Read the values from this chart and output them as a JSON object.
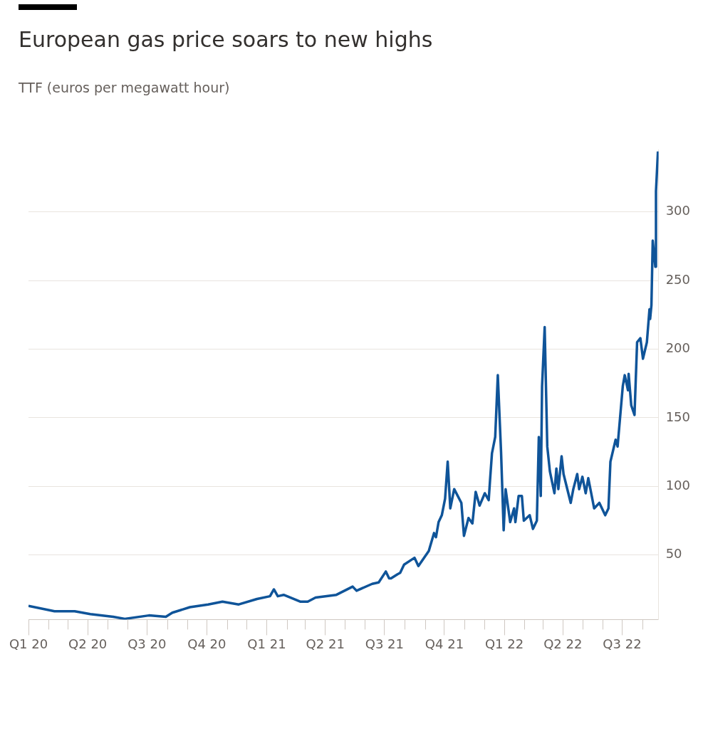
{
  "chart_data": {
    "type": "line",
    "title": "European gas price soars to new highs",
    "subtitle": "TTF (euros per megawatt hour)",
    "x": [
      "2020-01-01",
      "2020-02-10",
      "2020-03-12",
      "2020-04-05",
      "2020-05-10",
      "2020-05-28",
      "2020-07-04",
      "2020-07-30",
      "2020-08-09",
      "2020-09-05",
      "2020-10-03",
      "2020-10-25",
      "2020-11-19",
      "2020-12-17",
      "2021-01-06",
      "2021-01-12",
      "2021-01-18",
      "2021-01-27",
      "2021-02-22",
      "2021-03-05",
      "2021-03-17",
      "2021-04-18",
      "2021-05-13",
      "2021-05-19",
      "2021-06-12",
      "2021-06-22",
      "2021-07-03",
      "2021-07-08",
      "2021-07-11",
      "2021-07-21",
      "2021-07-25",
      "2021-07-31",
      "2021-08-16",
      "2021-08-22",
      "2021-09-07",
      "2021-09-15",
      "2021-09-18",
      "2021-09-22",
      "2021-09-27",
      "2021-10-02",
      "2021-10-06",
      "2021-10-10",
      "2021-10-16",
      "2021-10-27",
      "2021-10-31",
      "2021-11-07",
      "2021-11-13",
      "2021-11-18",
      "2021-11-24",
      "2021-12-02",
      "2021-12-08",
      "2021-12-10",
      "2021-12-13",
      "2021-12-18",
      "2021-12-22",
      "2021-12-27",
      "2021-12-31",
      "2022-01-03",
      "2022-01-10",
      "2022-01-16",
      "2022-01-18",
      "2022-01-23",
      "2022-01-28",
      "2022-01-31",
      "2022-02-09",
      "2022-02-14",
      "2022-02-20",
      "2022-02-23",
      "2022-02-26",
      "2022-02-28",
      "2022-03-04",
      "2022-03-08",
      "2022-03-12",
      "2022-03-19",
      "2022-03-22",
      "2022-03-25",
      "2022-03-30",
      "2022-04-02",
      "2022-04-13",
      "2022-04-17",
      "2022-04-23",
      "2022-04-26",
      "2022-05-01",
      "2022-05-06",
      "2022-05-10",
      "2022-05-19",
      "2022-05-27",
      "2022-06-05",
      "2022-06-10",
      "2022-06-13",
      "2022-06-21",
      "2022-06-24",
      "2022-07-02",
      "2022-07-05",
      "2022-07-10",
      "2022-07-11",
      "2022-07-15",
      "2022-07-20",
      "2022-07-24",
      "2022-07-29",
      "2022-08-02",
      "2022-08-08",
      "2022-08-12",
      "2022-08-13",
      "2022-08-15",
      "2022-08-17",
      "2022-08-21",
      "2022-08-22",
      "2022-08-25"
    ],
    "series": [
      {
        "color": "#0f5499",
        "values": [
          13,
          9,
          9,
          7,
          5,
          3.5,
          6,
          5,
          8,
          12,
          14,
          16,
          14,
          18,
          20,
          25,
          20,
          21,
          16,
          16,
          19,
          21,
          27,
          24,
          29,
          30,
          38,
          33,
          33,
          36,
          37,
          43,
          48,
          42,
          53,
          66,
          63,
          74,
          79,
          91,
          118,
          84,
          98,
          88,
          64,
          77,
          73,
          96,
          86,
          95,
          90,
          104,
          124,
          136,
          181,
          125,
          68,
          98,
          74,
          84,
          74,
          93,
          93,
          75,
          79,
          69,
          75,
          136,
          93,
          173,
          216,
          129,
          111,
          95,
          113,
          98,
          122,
          109,
          88,
          98,
          109,
          98,
          107,
          95,
          106,
          84,
          88,
          79,
          84,
          118,
          134,
          129,
          173,
          181,
          170,
          182,
          159,
          152,
          205,
          208,
          193,
          205,
          229,
          222,
          232,
          279,
          260,
          315,
          344
        ]
      }
    ],
    "xlim": [
      "2020-01-01",
      "2022-08-26"
    ],
    "xticks": [
      {
        "value": "2020-01-01",
        "label": "Q1 20"
      },
      {
        "value": "2020-02-01",
        "label": null
      },
      {
        "value": "2020-03-01",
        "label": null
      },
      {
        "value": "2020-04-01",
        "label": "Q2 20"
      },
      {
        "value": "2020-05-01",
        "label": null
      },
      {
        "value": "2020-06-01",
        "label": null
      },
      {
        "value": "2020-07-01",
        "label": "Q3 20"
      },
      {
        "value": "2020-08-01",
        "label": null
      },
      {
        "value": "2020-09-01",
        "label": null
      },
      {
        "value": "2020-10-01",
        "label": "Q4 20"
      },
      {
        "value": "2020-11-01",
        "label": null
      },
      {
        "value": "2020-12-01",
        "label": null
      },
      {
        "value": "2021-01-01",
        "label": "Q1 21"
      },
      {
        "value": "2021-02-01",
        "label": null
      },
      {
        "value": "2021-03-01",
        "label": null
      },
      {
        "value": "2021-04-01",
        "label": "Q2 21"
      },
      {
        "value": "2021-05-01",
        "label": null
      },
      {
        "value": "2021-06-01",
        "label": null
      },
      {
        "value": "2021-07-01",
        "label": "Q3 21"
      },
      {
        "value": "2021-08-01",
        "label": null
      },
      {
        "value": "2021-09-01",
        "label": null
      },
      {
        "value": "2021-10-01",
        "label": "Q4 21"
      },
      {
        "value": "2021-11-01",
        "label": null
      },
      {
        "value": "2021-12-01",
        "label": null
      },
      {
        "value": "2022-01-01",
        "label": "Q1 22"
      },
      {
        "value": "2022-02-01",
        "label": null
      },
      {
        "value": "2022-03-01",
        "label": null
      },
      {
        "value": "2022-04-01",
        "label": "Q2 22"
      },
      {
        "value": "2022-05-01",
        "label": null
      },
      {
        "value": "2022-06-01",
        "label": null
      },
      {
        "value": "2022-07-01",
        "label": "Q3 22"
      },
      {
        "value": "2022-08-01",
        "label": null
      }
    ],
    "ylim": [
      3,
      345
    ],
    "yticks": [
      50,
      100,
      150,
      200,
      250,
      300
    ],
    "grid": "y",
    "legend": false,
    "marker": "none",
    "line_style": "solid"
  }
}
